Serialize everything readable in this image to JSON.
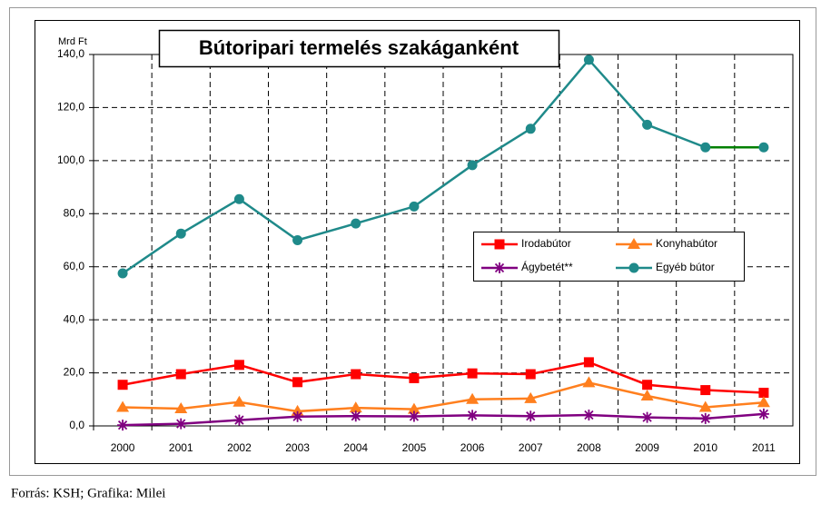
{
  "chart_data": {
    "type": "line",
    "title": "Bútoripari termelés szakáganként",
    "y_label": "Mrd Ft",
    "source": "Forrás: KSH; Grafika: Milei",
    "categories": [
      "2000",
      "2001",
      "2002",
      "2003",
      "2004",
      "2005",
      "2006",
      "2007",
      "2008",
      "2009",
      "2010",
      "2011"
    ],
    "series": [
      {
        "name": "Irodabútor",
        "color": "#ff0000",
        "marker": "square",
        "values": [
          15.5,
          19.5,
          23,
          16.5,
          19.5,
          18,
          19.8,
          19.5,
          24,
          15.5,
          13.5,
          12.5
        ]
      },
      {
        "name": "Konyhabútor",
        "color": "#ff7f1e",
        "marker": "triangle",
        "values": [
          7,
          6.5,
          9,
          5.5,
          6.8,
          6.3,
          10,
          10.3,
          16.3,
          11.3,
          7,
          8.8
        ]
      },
      {
        "name": "Ágybetét**",
        "color": "#800080",
        "marker": "star",
        "values": [
          0.3,
          0.8,
          2.2,
          3.5,
          3.7,
          3.6,
          4,
          3.7,
          4.1,
          3.2,
          2.8,
          4.5
        ]
      },
      {
        "name": "Egyéb bútor",
        "color": "#1f8a8a",
        "marker": "circle",
        "last_segment_color": "#008000",
        "values": [
          57.5,
          72.5,
          85.5,
          70,
          76.3,
          82.7,
          98.3,
          112,
          138,
          113.5,
          105,
          105
        ]
      }
    ],
    "ylim": [
      0,
      140
    ],
    "yticks": [
      {
        "value": 0,
        "label": "0,0"
      },
      {
        "value": 20,
        "label": "20,0"
      },
      {
        "value": 40,
        "label": "40,0"
      },
      {
        "value": 60,
        "label": "60,0"
      },
      {
        "value": 80,
        "label": "80,0"
      },
      {
        "value": 100,
        "label": "100,0"
      },
      {
        "value": 120,
        "label": "120,0"
      },
      {
        "value": 140,
        "label": "140,0"
      }
    ],
    "grid": true
  }
}
